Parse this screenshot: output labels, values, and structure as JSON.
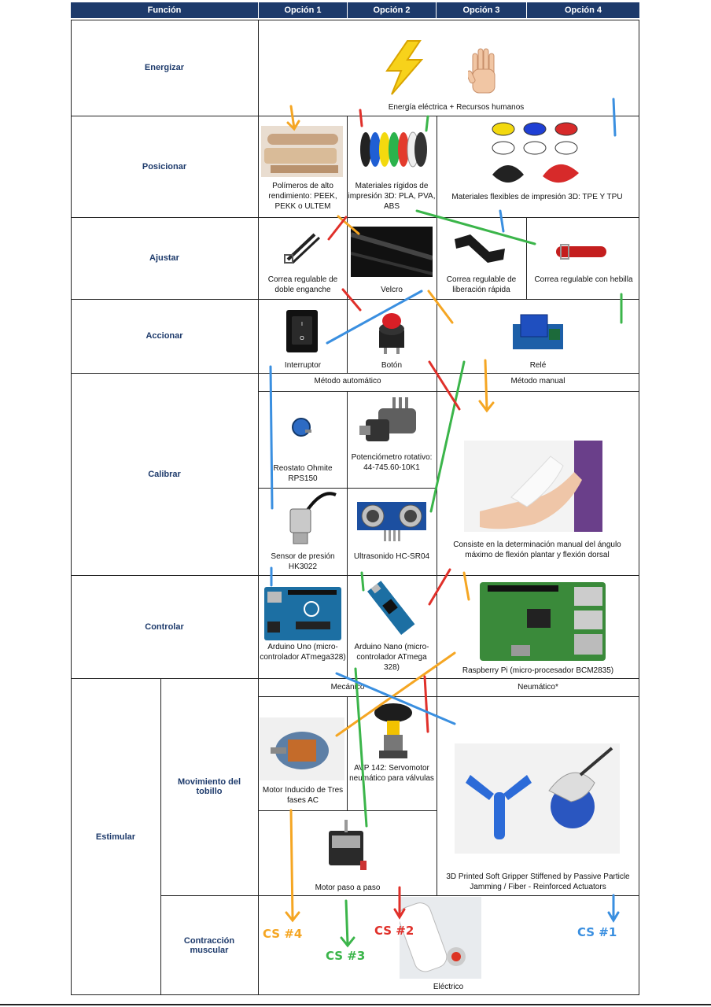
{
  "header": {
    "funcion": "Función",
    "opcion1": "Opción 1",
    "opcion2": "Opción 2",
    "opcion3": "Opción 3",
    "opcion4": "Opción 4"
  },
  "rows": {
    "energizar": {
      "label": "Energizar",
      "caption": "Energía eléctrica + Recursos humanos"
    },
    "posicionar": {
      "label": "Posicionar",
      "opt1": "Polímeros de alto rendimiento: PEEK, PEKK o ULTEM",
      "opt2": "Materiales rígidos de impresión 3D: PLA, PVA, ABS",
      "opt3": "Materiales flexibles de impresión 3D: TPE Y TPU"
    },
    "ajustar": {
      "label": "Ajustar",
      "opt1": "Correa regulable de doble enganche",
      "opt2": "Velcro",
      "opt3": "Correa regulable de liberación rápida",
      "opt4": "Correa regulable con hebilla"
    },
    "accionar": {
      "label": "Accionar",
      "opt1": "Interruptor",
      "opt2": "Botón",
      "opt3": "Relé"
    },
    "calibrar": {
      "label": "Calibrar",
      "method_auto": "Método automático",
      "method_manual": "Método manual",
      "opt1": "Reostato Ohmite RPS150",
      "opt2": "Potenciómetro rotativo: 44-745.60-10K1",
      "opt3": "Sensor de presión HK3022",
      "opt4": "Ultrasonido HC-SR04",
      "manual": "Consiste en la determinación manual del ángulo máximo de flexión plantar y flexión dorsal"
    },
    "controlar": {
      "label": "Controlar",
      "opt1": "Arduino Uno (micro-controlador ATmega328)",
      "opt2": "Arduino Nano (micro-controlador ATmega 328)",
      "opt3": "Raspberry Pi (micro-procesador BCM2835)"
    },
    "estimular": {
      "label": "Estimular",
      "sub1": "Movimiento del tobillo",
      "sub2": "Contracción muscular",
      "mecanico": "Mecánico",
      "neumatico": "Neumático*",
      "opt1": "Motor Inducido de Tres fases AC",
      "opt2": "AVP 142: Servomotor neumático para válvulas",
      "opt3": "Motor paso a paso",
      "opt4": "3D Printed Soft Gripper Stiffened by Passive Particle Jamming / Fiber - Reinforced Actuators",
      "electrico": "Eléctrico"
    }
  },
  "annotations": {
    "cs4": "CS #4",
    "cs3": "CS #3",
    "cs2": "CS #2",
    "cs1": "CS #1"
  },
  "colors": {
    "header_bg": "#1d3a6b",
    "function_text": "#1d3a6b",
    "cs1": "#3a8fe0",
    "cs2": "#e0302a",
    "cs3": "#3bb54a",
    "cs4": "#f5a623"
  }
}
